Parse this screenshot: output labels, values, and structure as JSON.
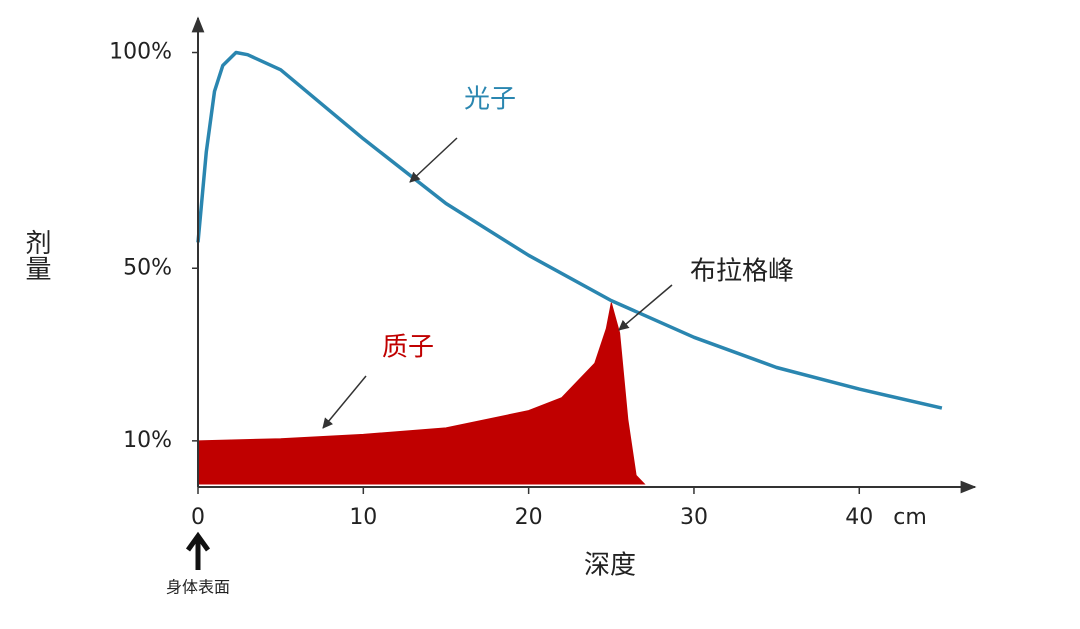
{
  "chart_data": {
    "type": "line",
    "y_label": "剂量",
    "x_label": "深度",
    "x_unit": "cm",
    "annotations": {
      "surface": "身体表面",
      "bragg_peak": "布拉格峰"
    },
    "xlim": [
      0,
      47
    ],
    "ylim": [
      0,
      108
    ],
    "xticks": [
      0,
      10,
      20,
      30,
      40
    ],
    "yticks": [
      {
        "value": 10,
        "label": "10%"
      },
      {
        "value": 50,
        "label": "50%"
      },
      {
        "value": 100,
        "label": "100%"
      }
    ],
    "grid": false,
    "series": [
      {
        "name": "光子",
        "color": "#2a86b0",
        "fill": false,
        "x": [
          0,
          0.5,
          1,
          1.5,
          2.3,
          3,
          5,
          7.5,
          10,
          15,
          20,
          25,
          30,
          35,
          40,
          45
        ],
        "values": [
          56,
          77,
          91,
          97,
          100,
          99.5,
          96,
          88,
          80,
          65,
          53,
          42.5,
          34,
          27,
          22,
          17.6
        ]
      },
      {
        "name": "质子",
        "color": "#c00000",
        "fill": true,
        "x": [
          0,
          5,
          10,
          15,
          20,
          22,
          24,
          24.7,
          25,
          25.5,
          26,
          26.5,
          27
        ],
        "values": [
          10,
          10.5,
          11.5,
          13,
          17,
          20,
          28,
          36,
          42,
          35,
          15,
          2,
          0
        ]
      }
    ]
  }
}
